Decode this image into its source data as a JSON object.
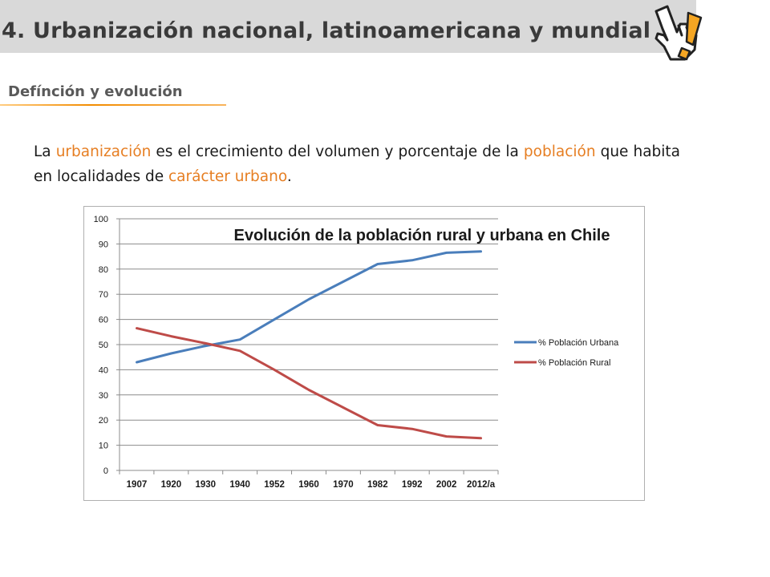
{
  "header": {
    "title": "4. Urbanización nacional, latinoamericana y  mundial",
    "icon": "hand-pointer-exclamation-icon"
  },
  "section": {
    "subtitle": "Defínción y evolución"
  },
  "definition": {
    "t1": "La ",
    "k1": "urbanización",
    "t2": " es el crecimiento del volumen y porcentaje de la ",
    "k2": "población",
    "t3": " que habita en localidades de ",
    "k3": "carácter urbano",
    "t4": "."
  },
  "colors": {
    "accent": "#e67e22",
    "urban": "#4a7ebb",
    "rural": "#be4b48"
  },
  "chart_data": {
    "type": "line",
    "title": "Evolución de la población rural y urbana en Chile",
    "categories": [
      "1907",
      "1920",
      "1930",
      "1940",
      "1952",
      "1960",
      "1970",
      "1982",
      "1992",
      "2002",
      "2012/a"
    ],
    "series": [
      {
        "name": "% Población Urbana",
        "values": [
          43,
          46.5,
          49.5,
          52,
          60,
          68,
          75,
          82,
          83.5,
          86.5,
          87
        ],
        "color": "#4a7ebb"
      },
      {
        "name": "% Población Rural",
        "values": [
          56.5,
          53.3,
          50.5,
          47.5,
          40,
          32,
          25,
          18,
          16.5,
          13.5,
          12.8
        ],
        "color": "#be4b48"
      }
    ],
    "ylim": [
      0,
      100
    ],
    "yticks": [
      "0",
      "10",
      "20",
      "30",
      "40",
      "50",
      "60",
      "70",
      "80",
      "90",
      "100"
    ],
    "grid": true,
    "legend_position": "right"
  }
}
